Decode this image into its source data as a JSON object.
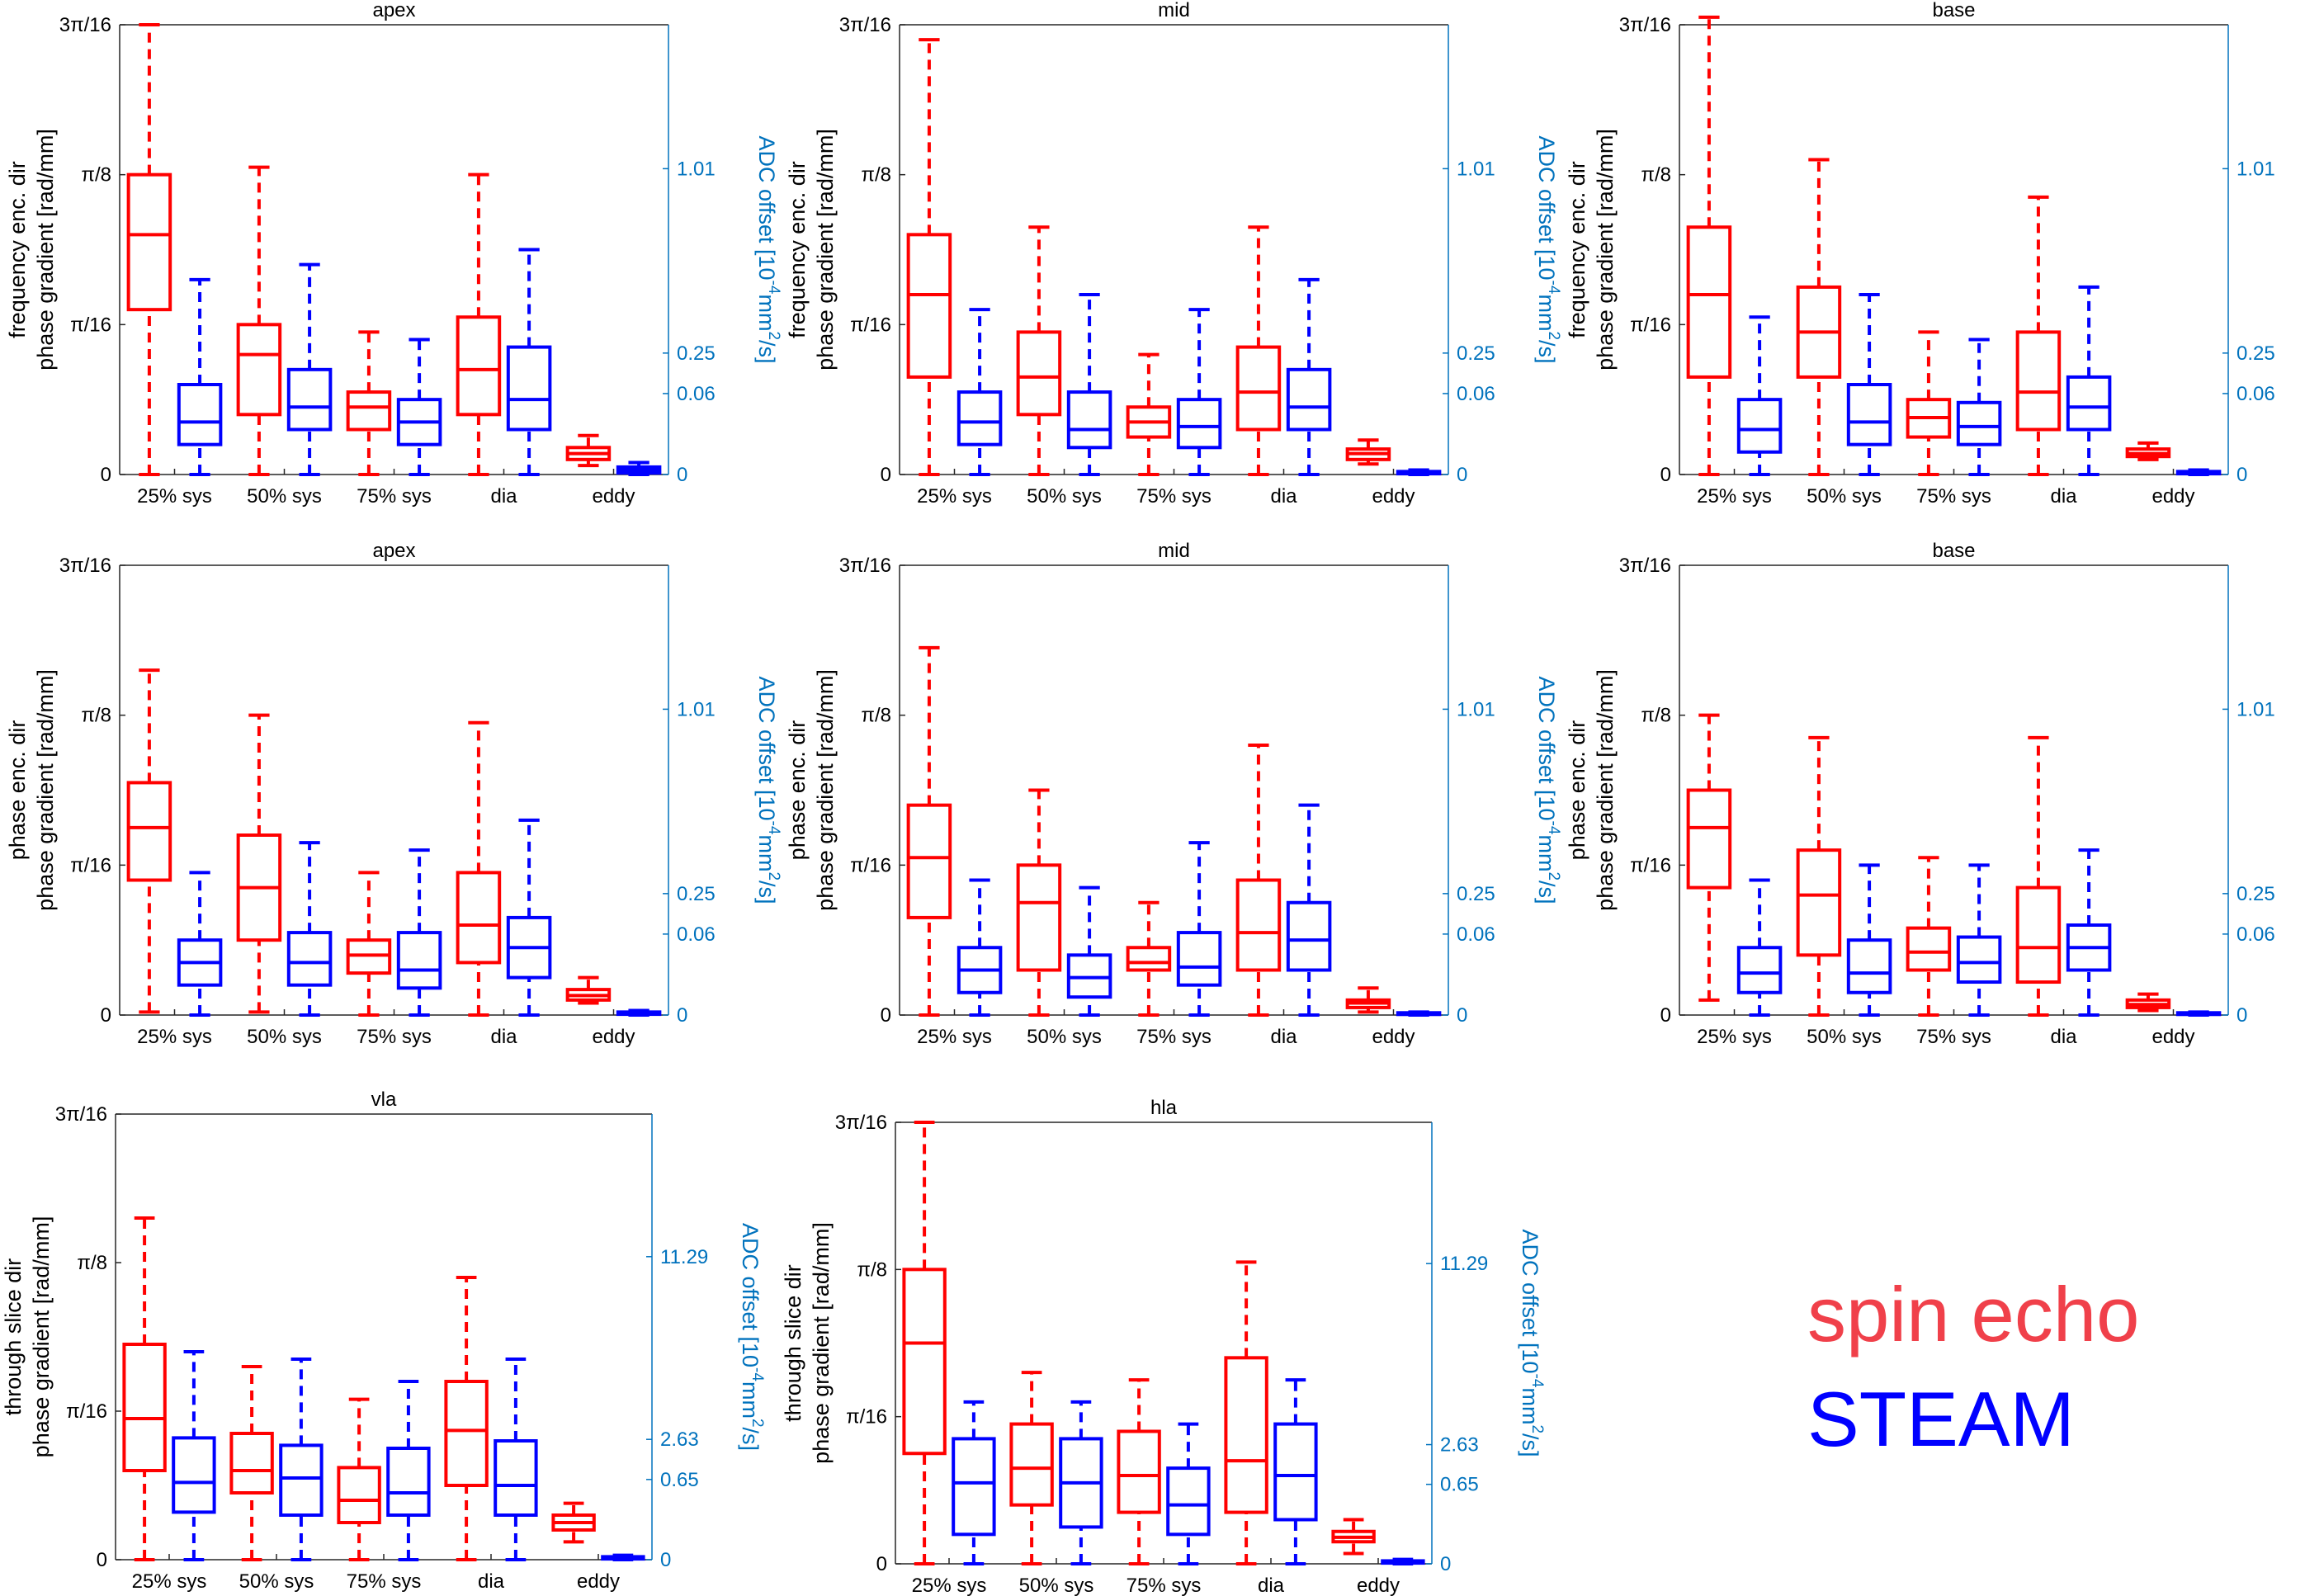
{
  "style": {
    "spin_color": "#ff0000",
    "steam_color": "#0000ff",
    "right_axis_color": "#0072bd",
    "legend_spin_color": "#f0404a"
  },
  "legend": {
    "spin_echo": "spin echo",
    "steam": "STEAM"
  },
  "chart_data": [
    {
      "type": "box",
      "title": "apex",
      "ylabel_line1": "frequency enc. dir",
      "ylabel_line2": "phase gradient [rad/mm]",
      "right_label_main": "ADC offset [10",
      "right_label_sup": "-4",
      "right_label_unit": "mm",
      "right_label_sup2": "2",
      "right_label_end": "/s]",
      "yticks": [
        "0",
        "π/16",
        "π/8",
        "3π/16"
      ],
      "right_ticks": [
        "0",
        "0.06",
        "0.25",
        "1.01"
      ],
      "categories": [
        "25% sys",
        "50% sys",
        "75% sys",
        "dia",
        "eddy"
      ],
      "ylim": [
        0,
        3
      ],
      "series": [
        {
          "name": "spin echo",
          "boxes": [
            [
              0,
              1.1,
              1.6,
              2.0,
              3.0
            ],
            [
              0,
              0.4,
              0.8,
              1.0,
              2.05
            ],
            [
              0,
              0.3,
              0.45,
              0.55,
              0.95
            ],
            [
              0,
              0.4,
              0.7,
              1.05,
              2.0
            ],
            [
              0.06,
              0.1,
              0.14,
              0.18,
              0.26
            ]
          ]
        },
        {
          "name": "STEAM",
          "boxes": [
            [
              0,
              0.2,
              0.35,
              0.6,
              1.3
            ],
            [
              0,
              0.3,
              0.45,
              0.7,
              1.4
            ],
            [
              0,
              0.2,
              0.35,
              0.5,
              0.9
            ],
            [
              0,
              0.3,
              0.5,
              0.85,
              1.5
            ],
            [
              0,
              0.01,
              0.03,
              0.05,
              0.08
            ]
          ]
        }
      ]
    },
    {
      "type": "box",
      "title": "mid",
      "ylabel_line1": "frequency enc. dir",
      "ylabel_line2": "phase gradient [rad/mm]",
      "right_label_main": "ADC offset [10",
      "right_label_sup": "-4",
      "right_label_unit": "mm",
      "right_label_sup2": "2",
      "right_label_end": "/s]",
      "yticks": [
        "0",
        "π/16",
        "π/8",
        "3π/16"
      ],
      "right_ticks": [
        "0",
        "0.06",
        "0.25",
        "1.01"
      ],
      "categories": [
        "25% sys",
        "50% sys",
        "75% sys",
        "dia",
        "eddy"
      ],
      "ylim": [
        0,
        3
      ],
      "series": [
        {
          "name": "spin echo",
          "boxes": [
            [
              0,
              0.65,
              1.2,
              1.6,
              2.9
            ],
            [
              0,
              0.4,
              0.65,
              0.95,
              1.65
            ],
            [
              0,
              0.25,
              0.35,
              0.45,
              0.8
            ],
            [
              0,
              0.3,
              0.55,
              0.85,
              1.65
            ],
            [
              0.07,
              0.1,
              0.14,
              0.17,
              0.23
            ]
          ]
        },
        {
          "name": "STEAM",
          "boxes": [
            [
              0,
              0.2,
              0.35,
              0.55,
              1.1
            ],
            [
              0,
              0.18,
              0.3,
              0.55,
              1.2
            ],
            [
              0,
              0.18,
              0.32,
              0.5,
              1.1
            ],
            [
              0,
              0.3,
              0.45,
              0.7,
              1.3
            ],
            [
              0,
              0.005,
              0.01,
              0.02,
              0.03
            ]
          ]
        }
      ]
    },
    {
      "type": "box",
      "title": "base",
      "ylabel_line1": "frequency enc. dir",
      "ylabel_line2": "phase gradient [rad/mm]",
      "right_label_main": "ADC offset [10",
      "right_label_sup": "-4",
      "right_label_unit": "mm",
      "right_label_sup2": "2",
      "right_label_end": "/s]",
      "yticks": [
        "0",
        "π/16",
        "π/8",
        "3π/16"
      ],
      "right_ticks": [
        "0",
        "0.06",
        "0.25",
        "1.01"
      ],
      "categories": [
        "25% sys",
        "50% sys",
        "75% sys",
        "dia",
        "eddy"
      ],
      "ylim": [
        0,
        3
      ],
      "series": [
        {
          "name": "spin echo",
          "boxes": [
            [
              0,
              0.65,
              1.2,
              1.65,
              3.05
            ],
            [
              0,
              0.65,
              0.95,
              1.25,
              2.1
            ],
            [
              0,
              0.25,
              0.38,
              0.5,
              0.95
            ],
            [
              0,
              0.3,
              0.55,
              0.95,
              1.85
            ],
            [
              0.1,
              0.12,
              0.14,
              0.17,
              0.21
            ]
          ]
        },
        {
          "name": "STEAM",
          "boxes": [
            [
              0,
              0.15,
              0.3,
              0.5,
              1.05
            ],
            [
              0,
              0.2,
              0.35,
              0.6,
              1.2
            ],
            [
              0,
              0.2,
              0.32,
              0.48,
              0.9
            ],
            [
              0,
              0.3,
              0.45,
              0.65,
              1.25
            ],
            [
              0,
              0.005,
              0.01,
              0.02,
              0.03
            ]
          ]
        }
      ]
    },
    {
      "type": "box",
      "title": "apex",
      "ylabel_line1": "phase enc. dir",
      "ylabel_line2": "phase gradient [rad/mm]",
      "right_label_main": "ADC offset [10",
      "right_label_sup": "-4",
      "right_label_unit": "mm",
      "right_label_sup2": "2",
      "right_label_end": "/s]",
      "yticks": [
        "0",
        "π/16",
        "π/8",
        "3π/16"
      ],
      "right_ticks": [
        "0",
        "0.06",
        "0.25",
        "1.01"
      ],
      "categories": [
        "25% sys",
        "50% sys",
        "75% sys",
        "dia",
        "eddy"
      ],
      "ylim": [
        0,
        3
      ],
      "series": [
        {
          "name": "spin echo",
          "boxes": [
            [
              0.02,
              0.9,
              1.25,
              1.55,
              2.3
            ],
            [
              0.02,
              0.5,
              0.85,
              1.2,
              2.0
            ],
            [
              0,
              0.28,
              0.4,
              0.5,
              0.95
            ],
            [
              0,
              0.35,
              0.6,
              0.95,
              1.95
            ],
            [
              0.08,
              0.1,
              0.13,
              0.17,
              0.25
            ]
          ]
        },
        {
          "name": "STEAM",
          "boxes": [
            [
              0,
              0.2,
              0.35,
              0.5,
              0.95
            ],
            [
              0,
              0.2,
              0.35,
              0.55,
              1.15
            ],
            [
              0,
              0.18,
              0.3,
              0.55,
              1.1
            ],
            [
              0,
              0.25,
              0.45,
              0.65,
              1.3
            ],
            [
              0,
              0.005,
              0.01,
              0.02,
              0.03
            ]
          ]
        }
      ]
    },
    {
      "type": "box",
      "title": "mid",
      "ylabel_line1": "phase enc. dir",
      "ylabel_line2": "phase gradient [rad/mm]",
      "right_label_main": "ADC offset [10",
      "right_label_sup": "-4",
      "right_label_unit": "mm",
      "right_label_sup2": "2",
      "right_label_end": "/s]",
      "yticks": [
        "0",
        "π/16",
        "π/8",
        "3π/16"
      ],
      "right_ticks": [
        "0",
        "0.06",
        "0.25",
        "1.01"
      ],
      "categories": [
        "25% sys",
        "50% sys",
        "75% sys",
        "dia",
        "eddy"
      ],
      "ylim": [
        0,
        3
      ],
      "series": [
        {
          "name": "spin echo",
          "boxes": [
            [
              0,
              0.65,
              1.05,
              1.4,
              2.45
            ],
            [
              0,
              0.3,
              0.75,
              1.0,
              1.5
            ],
            [
              0,
              0.3,
              0.35,
              0.45,
              0.75
            ],
            [
              0,
              0.3,
              0.55,
              0.9,
              1.8
            ],
            [
              0.02,
              0.05,
              0.08,
              0.1,
              0.18
            ]
          ]
        },
        {
          "name": "STEAM",
          "boxes": [
            [
              0,
              0.15,
              0.3,
              0.45,
              0.9
            ],
            [
              0,
              0.12,
              0.25,
              0.4,
              0.85
            ],
            [
              0,
              0.2,
              0.32,
              0.55,
              1.15
            ],
            [
              0,
              0.3,
              0.5,
              0.75,
              1.4
            ],
            [
              0,
              0.005,
              0.01,
              0.015,
              0.02
            ]
          ]
        }
      ]
    },
    {
      "type": "box",
      "title": "base",
      "ylabel_line1": "phase enc. dir",
      "ylabel_line2": "phase gradient [rad/mm]",
      "right_label_main": "ADC offset [10",
      "right_label_sup": "-4",
      "right_label_unit": "mm",
      "right_label_sup2": "2",
      "right_label_end": "/s]",
      "yticks": [
        "0",
        "π/16",
        "π/8",
        "3π/16"
      ],
      "right_ticks": [
        "0",
        "0.06",
        "0.25",
        "1.01"
      ],
      "categories": [
        "25% sys",
        "50% sys",
        "75% sys",
        "dia",
        "eddy"
      ],
      "ylim": [
        0,
        3
      ],
      "series": [
        {
          "name": "spin echo",
          "boxes": [
            [
              0.1,
              0.85,
              1.25,
              1.5,
              2.0
            ],
            [
              0,
              0.4,
              0.8,
              1.1,
              1.85
            ],
            [
              0,
              0.3,
              0.42,
              0.58,
              1.05
            ],
            [
              0,
              0.22,
              0.45,
              0.85,
              1.85
            ],
            [
              0.03,
              0.05,
              0.07,
              0.1,
              0.14
            ]
          ]
        },
        {
          "name": "STEAM",
          "boxes": [
            [
              0,
              0.15,
              0.28,
              0.45,
              0.9
            ],
            [
              0,
              0.15,
              0.28,
              0.5,
              1.0
            ],
            [
              0,
              0.22,
              0.35,
              0.52,
              1.0
            ],
            [
              0,
              0.3,
              0.45,
              0.6,
              1.1
            ],
            [
              0,
              0.005,
              0.01,
              0.015,
              0.02
            ]
          ]
        }
      ]
    },
    {
      "type": "box",
      "title": "vla",
      "ylabel_line1": "through slice dir",
      "ylabel_line2": "phase gradient [rad/mm]",
      "right_label_main": "ADC offset [10",
      "right_label_sup": "-4",
      "right_label_unit": "mm",
      "right_label_sup2": "2",
      "right_label_end": "/s]",
      "yticks": [
        "0",
        "π/16",
        "π/8",
        "3π/16"
      ],
      "right_ticks": [
        "0",
        "0.65",
        "2.63",
        "11.29"
      ],
      "categories": [
        "25% sys",
        "50% sys",
        "75% sys",
        "dia",
        "eddy"
      ],
      "ylim": [
        0,
        3
      ],
      "series": [
        {
          "name": "spin echo",
          "boxes": [
            [
              0,
              0.6,
              0.95,
              1.45,
              2.3
            ],
            [
              0,
              0.45,
              0.6,
              0.85,
              1.3
            ],
            [
              0,
              0.25,
              0.4,
              0.62,
              1.08
            ],
            [
              0,
              0.5,
              0.87,
              1.2,
              1.9
            ],
            [
              0.12,
              0.2,
              0.25,
              0.3,
              0.38
            ]
          ]
        },
        {
          "name": "STEAM",
          "boxes": [
            [
              0,
              0.32,
              0.52,
              0.82,
              1.4
            ],
            [
              0,
              0.3,
              0.55,
              0.77,
              1.35
            ],
            [
              0,
              0.3,
              0.45,
              0.75,
              1.2
            ],
            [
              0,
              0.3,
              0.5,
              0.8,
              1.35
            ],
            [
              0,
              0.005,
              0.01,
              0.02,
              0.03
            ]
          ]
        }
      ]
    },
    {
      "type": "box",
      "title": "hla",
      "ylabel_line1": "through slice dir",
      "ylabel_line2": "phase gradient [rad/mm]",
      "right_label_main": "ADC offset [10",
      "right_label_sup": "-4",
      "right_label_unit": "mm",
      "right_label_sup2": "2",
      "right_label_end": "/s]",
      "yticks": [
        "0",
        "π/16",
        "π/8",
        "3π/16"
      ],
      "right_ticks": [
        "0",
        "0.65",
        "2.63",
        "11.29"
      ],
      "categories": [
        "25% sys",
        "50% sys",
        "75% sys",
        "dia",
        "eddy"
      ],
      "ylim": [
        0,
        3
      ],
      "series": [
        {
          "name": "spin echo",
          "boxes": [
            [
              0,
              0.75,
              1.5,
              2.0,
              3.0
            ],
            [
              0,
              0.4,
              0.65,
              0.95,
              1.3
            ],
            [
              0,
              0.35,
              0.6,
              0.9,
              1.25
            ],
            [
              0,
              0.35,
              0.7,
              1.4,
              2.05
            ],
            [
              0.07,
              0.15,
              0.18,
              0.22,
              0.3
            ]
          ]
        },
        {
          "name": "STEAM",
          "boxes": [
            [
              0,
              0.2,
              0.55,
              0.85,
              1.1
            ],
            [
              0,
              0.25,
              0.55,
              0.85,
              1.1
            ],
            [
              0,
              0.2,
              0.4,
              0.65,
              0.95
            ],
            [
              0,
              0.3,
              0.6,
              0.95,
              1.25
            ],
            [
              0,
              0.005,
              0.01,
              0.02,
              0.03
            ]
          ]
        }
      ]
    }
  ]
}
